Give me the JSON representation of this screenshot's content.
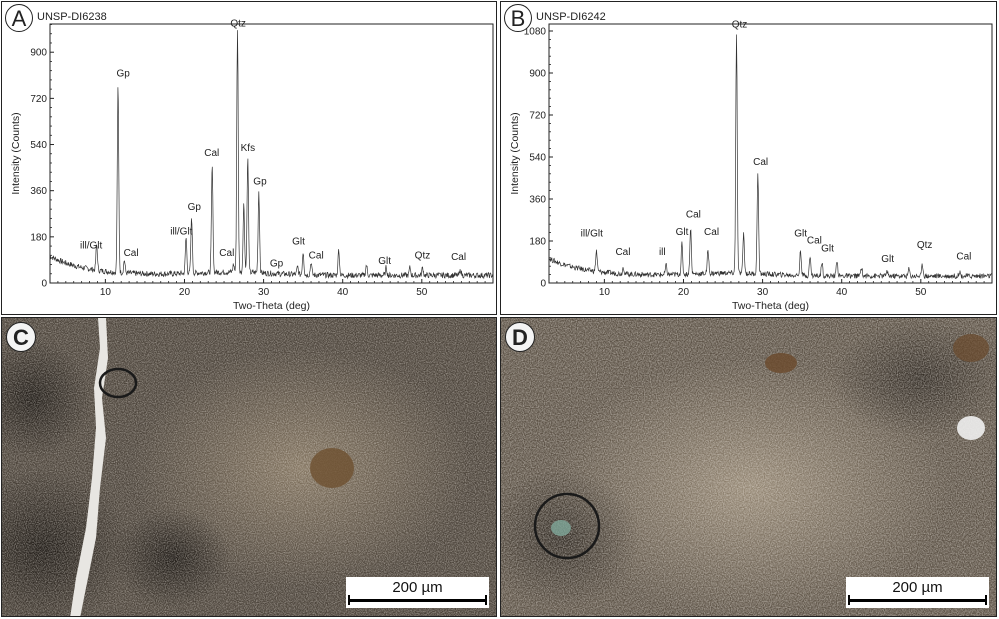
{
  "panels": {
    "a": {
      "letter": "A",
      "sample_id": "UNSP-DI6238"
    },
    "b": {
      "letter": "B",
      "sample_id": "UNSP-DI6242"
    },
    "c": {
      "letter": "C",
      "scale_label": "200 µm"
    },
    "d": {
      "letter": "D",
      "scale_label": "200 µm"
    }
  },
  "chart_data": [
    {
      "type": "line",
      "title": "UNSP-DI6238",
      "xlabel": "Two-Theta (deg)",
      "ylabel": "Intensity  (Counts)",
      "xlim": [
        3,
        59
      ],
      "ylim": [
        0,
        1010
      ],
      "xticks": [
        10,
        20,
        30,
        40,
        50
      ],
      "yticks": [
        0,
        180,
        360,
        540,
        720,
        900
      ],
      "peaks": [
        {
          "x": 8.9,
          "y": 130
        },
        {
          "x": 11.6,
          "y": 760
        },
        {
          "x": 12.4,
          "y": 80
        },
        {
          "x": 20.2,
          "y": 170
        },
        {
          "x": 20.9,
          "y": 250
        },
        {
          "x": 23.5,
          "y": 450
        },
        {
          "x": 26.2,
          "y": 60
        },
        {
          "x": 26.7,
          "y": 980
        },
        {
          "x": 27.5,
          "y": 300
        },
        {
          "x": 28.0,
          "y": 480
        },
        {
          "x": 29.4,
          "y": 350
        },
        {
          "x": 34.3,
          "y": 60
        },
        {
          "x": 35.0,
          "y": 120
        },
        {
          "x": 36.0,
          "y": 80
        },
        {
          "x": 39.5,
          "y": 130
        },
        {
          "x": 43.0,
          "y": 70
        },
        {
          "x": 45.5,
          "y": 60
        },
        {
          "x": 48.5,
          "y": 60
        },
        {
          "x": 50.1,
          "y": 60
        },
        {
          "x": 54.9,
          "y": 50
        }
      ],
      "annotations": [
        {
          "label": "ill/Glt",
          "x": 6.8,
          "y": 135
        },
        {
          "label": "Cal",
          "x": 12.3,
          "y": 105
        },
        {
          "label": "Gp",
          "x": 11.4,
          "y": 805
        },
        {
          "label": "ill/Glt",
          "x": 18.2,
          "y": 190
        },
        {
          "label": "Gp",
          "x": 20.4,
          "y": 285
        },
        {
          "label": "Cal",
          "x": 22.5,
          "y": 495
        },
        {
          "label": "Cal",
          "x": 24.4,
          "y": 105
        },
        {
          "label": "Qtz",
          "x": 25.8,
          "y": 1000
        },
        {
          "label": "Kfs",
          "x": 27.1,
          "y": 515
        },
        {
          "label": "Gp",
          "x": 28.7,
          "y": 385
        },
        {
          "label": "Glt",
          "x": 33.6,
          "y": 150
        },
        {
          "label": "Gp",
          "x": 30.8,
          "y": 65
        },
        {
          "label": "Cal",
          "x": 35.7,
          "y": 95
        },
        {
          "label": "Glt",
          "x": 44.5,
          "y": 75
        },
        {
          "label": "Qtz",
          "x": 49.1,
          "y": 95
        },
        {
          "label": "Cal",
          "x": 53.7,
          "y": 90
        }
      ]
    },
    {
      "type": "line",
      "title": "UNSP-DI6242",
      "xlabel": "Two-Theta (deg)",
      "ylabel": "Intensity  (Counts)",
      "xlim": [
        3,
        59
      ],
      "ylim": [
        0,
        1110
      ],
      "xticks": [
        10,
        20,
        30,
        40,
        50
      ],
      "yticks": [
        0,
        180,
        360,
        540,
        720,
        900,
        1080
      ],
      "peaks": [
        {
          "x": 9.0,
          "y": 120
        },
        {
          "x": 12.4,
          "y": 60
        },
        {
          "x": 17.8,
          "y": 70
        },
        {
          "x": 19.8,
          "y": 160
        },
        {
          "x": 20.9,
          "y": 230
        },
        {
          "x": 23.1,
          "y": 130
        },
        {
          "x": 26.7,
          "y": 1060
        },
        {
          "x": 27.6,
          "y": 200
        },
        {
          "x": 29.4,
          "y": 470
        },
        {
          "x": 34.8,
          "y": 140
        },
        {
          "x": 36.0,
          "y": 110
        },
        {
          "x": 37.5,
          "y": 90
        },
        {
          "x": 39.4,
          "y": 100
        },
        {
          "x": 42.5,
          "y": 70
        },
        {
          "x": 45.7,
          "y": 50
        },
        {
          "x": 48.5,
          "y": 60
        },
        {
          "x": 50.2,
          "y": 80
        },
        {
          "x": 54.9,
          "y": 50
        }
      ],
      "annotations": [
        {
          "label": "ill/Glt",
          "x": 7.0,
          "y": 200
        },
        {
          "label": "Cal",
          "x": 11.4,
          "y": 120
        },
        {
          "label": "ill",
          "x": 16.9,
          "y": 120
        },
        {
          "label": "Glt",
          "x": 19.0,
          "y": 205
        },
        {
          "label": "Cal",
          "x": 20.3,
          "y": 280
        },
        {
          "label": "Cal",
          "x": 22.6,
          "y": 205
        },
        {
          "label": "Qtz",
          "x": 26.1,
          "y": 1095
        },
        {
          "label": "Cal",
          "x": 28.8,
          "y": 505
        },
        {
          "label": "Glt",
          "x": 34.0,
          "y": 200
        },
        {
          "label": "Cal",
          "x": 35.6,
          "y": 170
        },
        {
          "label": "Glt",
          "x": 37.4,
          "y": 135
        },
        {
          "label": "Glt",
          "x": 45.0,
          "y": 90
        },
        {
          "label": "Qtz",
          "x": 49.5,
          "y": 150
        },
        {
          "label": "Cal",
          "x": 54.5,
          "y": 100
        }
      ]
    }
  ]
}
